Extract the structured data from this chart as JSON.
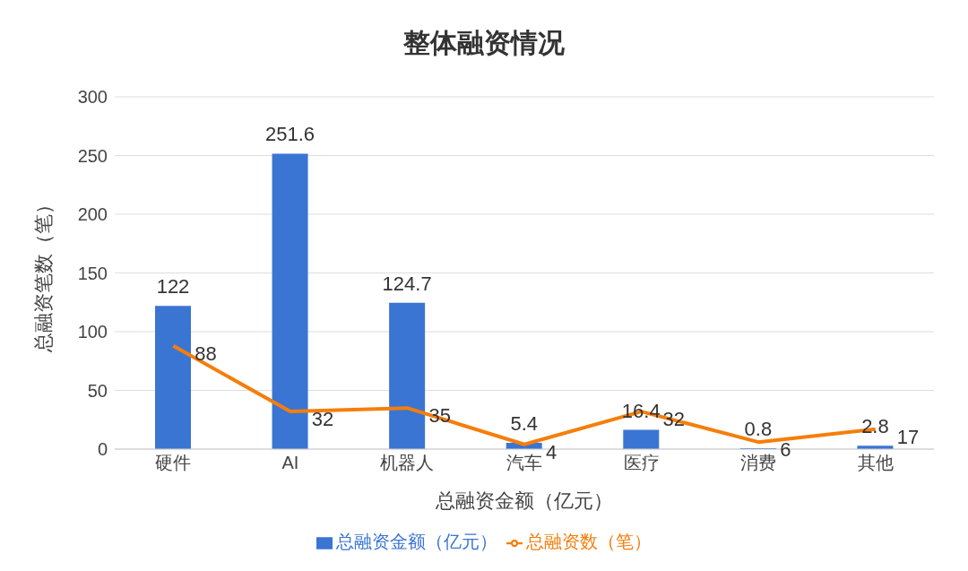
{
  "chart_data": {
    "type": "bar",
    "title": "整体融资情况",
    "xlabel": "总融资金额（亿元）",
    "ylabel": "总融资笔数（笔）",
    "categories": [
      "硬件",
      "AI",
      "机器人",
      "汽车",
      "医疗",
      "消费",
      "其他"
    ],
    "series": [
      {
        "name": "总融资金额（亿元）",
        "color": "#3a75d3",
        "values": [
          122,
          251.6,
          124.7,
          5.4,
          16.4,
          0.8,
          2.8
        ]
      },
      {
        "name": "总融资数（笔）",
        "type": "line",
        "color": "#f57e0b",
        "values": [
          88,
          32,
          35,
          4,
          32,
          6,
          17
        ]
      }
    ],
    "ylim": [
      0,
      300
    ],
    "yticks": [
      0,
      50,
      100,
      150,
      200,
      250,
      300
    ],
    "grid": "y",
    "legend": "bottom",
    "data_labels": true
  }
}
